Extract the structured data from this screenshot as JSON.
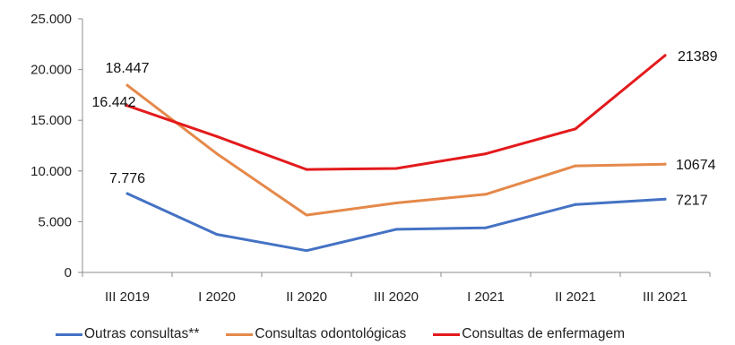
{
  "chart_data": {
    "type": "line",
    "categories": [
      "III 2019",
      "I 2020",
      "II 2020",
      "III 2020",
      "I 2021",
      "II 2021",
      "III 2021"
    ],
    "ylim": [
      0,
      25000
    ],
    "yticks": [
      0,
      5000,
      10000,
      15000,
      20000,
      25000
    ],
    "ytick_labels": [
      "0",
      "5.000",
      "10.000",
      "15.000",
      "20.000",
      "25.000"
    ],
    "grid": false,
    "legend_position": "bottom",
    "series": [
      {
        "name": "Outras consultas**",
        "color": "#4472C4",
        "values": [
          7776,
          3750,
          2150,
          4250,
          4400,
          6700,
          7217
        ],
        "labels": [
          {
            "index": 0,
            "text": "7.776"
          },
          {
            "index": 6,
            "text": "7217"
          }
        ]
      },
      {
        "name": "Consultas odontológicas",
        "color": "#E5894A",
        "values": [
          18447,
          11700,
          5650,
          6850,
          7700,
          10500,
          10674
        ],
        "labels": [
          {
            "index": 0,
            "text": "18.447"
          },
          {
            "index": 6,
            "text": "10674"
          }
        ]
      },
      {
        "name": "Consultas de enfermagem",
        "color": "#E31A1C",
        "values": [
          16442,
          13400,
          10150,
          10250,
          11700,
          14150,
          21389
        ],
        "labels": [
          {
            "index": 0,
            "text": "16.442"
          },
          {
            "index": 6,
            "text": "21389"
          }
        ]
      }
    ]
  }
}
